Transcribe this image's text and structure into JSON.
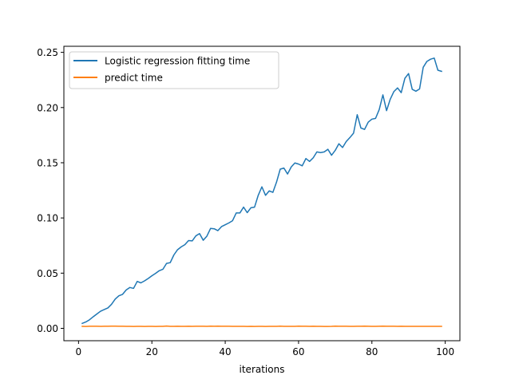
{
  "chart_data": {
    "type": "line",
    "title": "",
    "xlabel": "iterations",
    "ylabel": "",
    "xlim": [
      -4,
      104
    ],
    "ylim": [
      -0.0112,
      0.2555
    ],
    "xticks": [
      0,
      20,
      40,
      60,
      80,
      100
    ],
    "xtick_labels": [
      "0",
      "20",
      "40",
      "60",
      "80",
      "100"
    ],
    "yticks": [
      0.0,
      0.05,
      0.1,
      0.15,
      0.2,
      0.25
    ],
    "ytick_labels": [
      "0.00",
      "0.05",
      "0.10",
      "0.15",
      "0.20",
      "0.25"
    ],
    "grid": false,
    "legend": {
      "placement": "upper-left"
    },
    "x": [
      1,
      2,
      3,
      4,
      5,
      6,
      7,
      8,
      9,
      10,
      11,
      12,
      13,
      14,
      15,
      16,
      17,
      18,
      19,
      20,
      21,
      22,
      23,
      24,
      25,
      26,
      27,
      28,
      29,
      30,
      31,
      32,
      33,
      34,
      35,
      36,
      37,
      38,
      39,
      40,
      41,
      42,
      43,
      44,
      45,
      46,
      47,
      48,
      49,
      50,
      51,
      52,
      53,
      54,
      55,
      56,
      57,
      58,
      59,
      60,
      61,
      62,
      63,
      64,
      65,
      66,
      67,
      68,
      69,
      70,
      71,
      72,
      73,
      74,
      75,
      76,
      77,
      78,
      79,
      80,
      81,
      82,
      83,
      84,
      85,
      86,
      87,
      88,
      89,
      90,
      91,
      92,
      93,
      94,
      95,
      96,
      97,
      98,
      99
    ],
    "series": [
      {
        "name": "Logistic regression fitting time",
        "color": "#1f77b4",
        "values": [
          0.0045,
          0.0058,
          0.0078,
          0.0105,
          0.013,
          0.0155,
          0.017,
          0.0185,
          0.0218,
          0.0265,
          0.0295,
          0.0308,
          0.0348,
          0.037,
          0.0362,
          0.0425,
          0.0412,
          0.043,
          0.0452,
          0.0476,
          0.0498,
          0.0522,
          0.0535,
          0.0588,
          0.0595,
          0.0665,
          0.0712,
          0.0738,
          0.0758,
          0.0795,
          0.0792,
          0.0838,
          0.0858,
          0.0798,
          0.0835,
          0.0905,
          0.0902,
          0.0885,
          0.0922,
          0.0938,
          0.0955,
          0.0975,
          0.1045,
          0.1045,
          0.1098,
          0.1048,
          0.1092,
          0.1098,
          0.1205,
          0.1282,
          0.1205,
          0.1245,
          0.1232,
          0.1325,
          0.1442,
          0.1452,
          0.1398,
          0.1462,
          0.1498,
          0.1488,
          0.1472,
          0.1538,
          0.1512,
          0.1545,
          0.1598,
          0.1592,
          0.1598,
          0.1622,
          0.1568,
          0.1612,
          0.1672,
          0.1638,
          0.1692,
          0.1728,
          0.1768,
          0.1935,
          0.1815,
          0.1802,
          0.1868,
          0.1895,
          0.1902,
          0.1982,
          0.2115,
          0.1972,
          0.2075,
          0.2145,
          0.2178,
          0.2135,
          0.2265,
          0.2308,
          0.2165,
          0.2148,
          0.2168,
          0.2365,
          0.2418,
          0.2438,
          0.2448,
          0.2338,
          0.2328
        ]
      },
      {
        "name": "predict time",
        "color": "#ff7f0e",
        "values": [
          0.0018,
          0.0017,
          0.0019,
          0.0019,
          0.0019,
          0.0018,
          0.0019,
          0.0019,
          0.002,
          0.002,
          0.0019,
          0.0019,
          0.0018,
          0.0018,
          0.0017,
          0.0018,
          0.0018,
          0.0017,
          0.0018,
          0.0018,
          0.0017,
          0.0018,
          0.0018,
          0.0021,
          0.0018,
          0.0018,
          0.0019,
          0.0018,
          0.0018,
          0.0019,
          0.0018,
          0.0019,
          0.0019,
          0.0019,
          0.0018,
          0.002,
          0.0019,
          0.002,
          0.0019,
          0.0019,
          0.0019,
          0.0018,
          0.0018,
          0.0018,
          0.0018,
          0.0017,
          0.0018,
          0.0017,
          0.0018,
          0.0018,
          0.0017,
          0.0018,
          0.0018,
          0.0018,
          0.002,
          0.0018,
          0.0018,
          0.0018,
          0.0018,
          0.002,
          0.0019,
          0.0019,
          0.0018,
          0.0019,
          0.0018,
          0.0018,
          0.0017,
          0.0017,
          0.0018,
          0.002,
          0.0019,
          0.0019,
          0.0019,
          0.0018,
          0.0018,
          0.0019,
          0.0019,
          0.002,
          0.0019,
          0.0018,
          0.0018,
          0.0019,
          0.002,
          0.0019,
          0.0019,
          0.0019,
          0.0018,
          0.0019,
          0.0018,
          0.0018,
          0.0018,
          0.0018,
          0.0018,
          0.0018,
          0.0018,
          0.0018,
          0.0018,
          0.0018,
          0.0018
        ]
      }
    ]
  }
}
